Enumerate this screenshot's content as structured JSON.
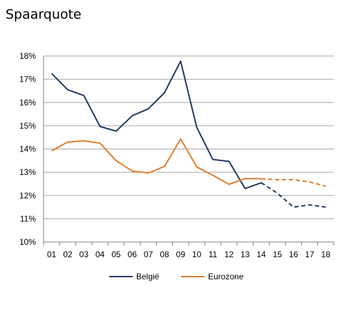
{
  "chart_data": {
    "type": "line",
    "title": "Spaarquote",
    "xlabel": "",
    "ylabel": "",
    "categories": [
      "01",
      "02",
      "03",
      "04",
      "05",
      "06",
      "07",
      "08",
      "09",
      "10",
      "11",
      "12",
      "13",
      "14",
      "15",
      "16",
      "17",
      "18"
    ],
    "ylim": [
      10,
      18
    ],
    "yticks": [
      "10%",
      "11%",
      "12%",
      "13%",
      "14%",
      "15%",
      "16%",
      "17%",
      "18%"
    ],
    "grid": true,
    "legend": "bottom",
    "series": [
      {
        "name": "België",
        "color": "#1f3864",
        "values": [
          17.25,
          16.55,
          16.3,
          14.97,
          14.77,
          15.43,
          15.73,
          16.42,
          17.78,
          14.93,
          13.55,
          13.47,
          12.3,
          12.55,
          12.1,
          11.5,
          11.6,
          11.5
        ],
        "projection_from_index": 13
      },
      {
        "name": "Eurozone",
        "color": "#e07b28",
        "values": [
          13.92,
          14.3,
          14.35,
          14.25,
          13.5,
          13.05,
          12.97,
          13.25,
          14.43,
          13.23,
          12.87,
          12.48,
          12.73,
          12.72,
          12.68,
          12.68,
          12.58,
          12.4
        ],
        "projection_from_index": 13
      }
    ]
  }
}
